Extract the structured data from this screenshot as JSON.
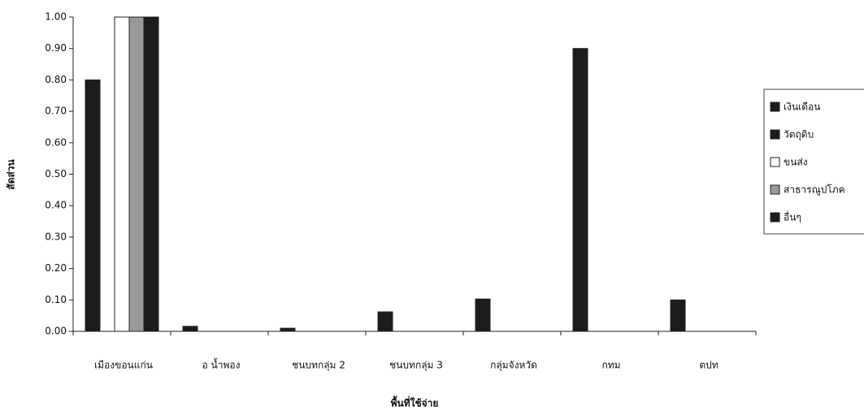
{
  "chart_data": {
    "type": "bar",
    "y_label": "สัดส่วน",
    "x_label": "พื้นที่ใช้จ่าย",
    "categories": [
      "เมืองขอนแก่น",
      "อ น้ำพอง",
      "ชนบทกลุ่ม 2",
      "ชนบทกลุ่ม 3",
      "กลุ่มจังหวัด",
      "กทม",
      "ตปท"
    ],
    "series": [
      {
        "name": "เงินเดือน",
        "color": "#1c1c1c",
        "values": [
          0.8,
          0.016,
          0.01,
          0.062,
          0.103,
          0.9,
          0.1
        ]
      },
      {
        "name": "วัตถุดิบ",
        "color": "#1c1c1c",
        "values": [
          0,
          0,
          0,
          0,
          0,
          0,
          0
        ]
      },
      {
        "name": "ขนส่ง",
        "color": "#ffffff",
        "values": [
          1.0,
          0,
          0,
          0,
          0,
          0,
          0
        ]
      },
      {
        "name": "สาธารณูปโภค",
        "color": "#9a9a9a",
        "values": [
          1.0,
          0,
          0,
          0,
          0,
          0,
          0
        ]
      },
      {
        "name": "อื่นๆ",
        "color": "#1c1c1c",
        "values": [
          1.0,
          0,
          0,
          0,
          0,
          0,
          0
        ]
      }
    ],
    "ylim": [
      0,
      1
    ],
    "yticks": [
      {
        "value": 0,
        "label": "0.00"
      },
      {
        "value": 0.1,
        "label": "0.10"
      },
      {
        "value": 0.2,
        "label": "0.20"
      },
      {
        "value": 0.3,
        "label": "0.30"
      },
      {
        "value": 0.4,
        "label": "0.40"
      },
      {
        "value": 0.5,
        "label": "0.50"
      },
      {
        "value": 0.6,
        "label": "0.60"
      },
      {
        "value": 0.7,
        "label": "0.70"
      },
      {
        "value": 0.8,
        "label": "0.80"
      },
      {
        "value": 0.9,
        "label": "0.90"
      },
      {
        "value": 1,
        "label": "1.00"
      }
    ],
    "grid": false,
    "legend": "right"
  }
}
